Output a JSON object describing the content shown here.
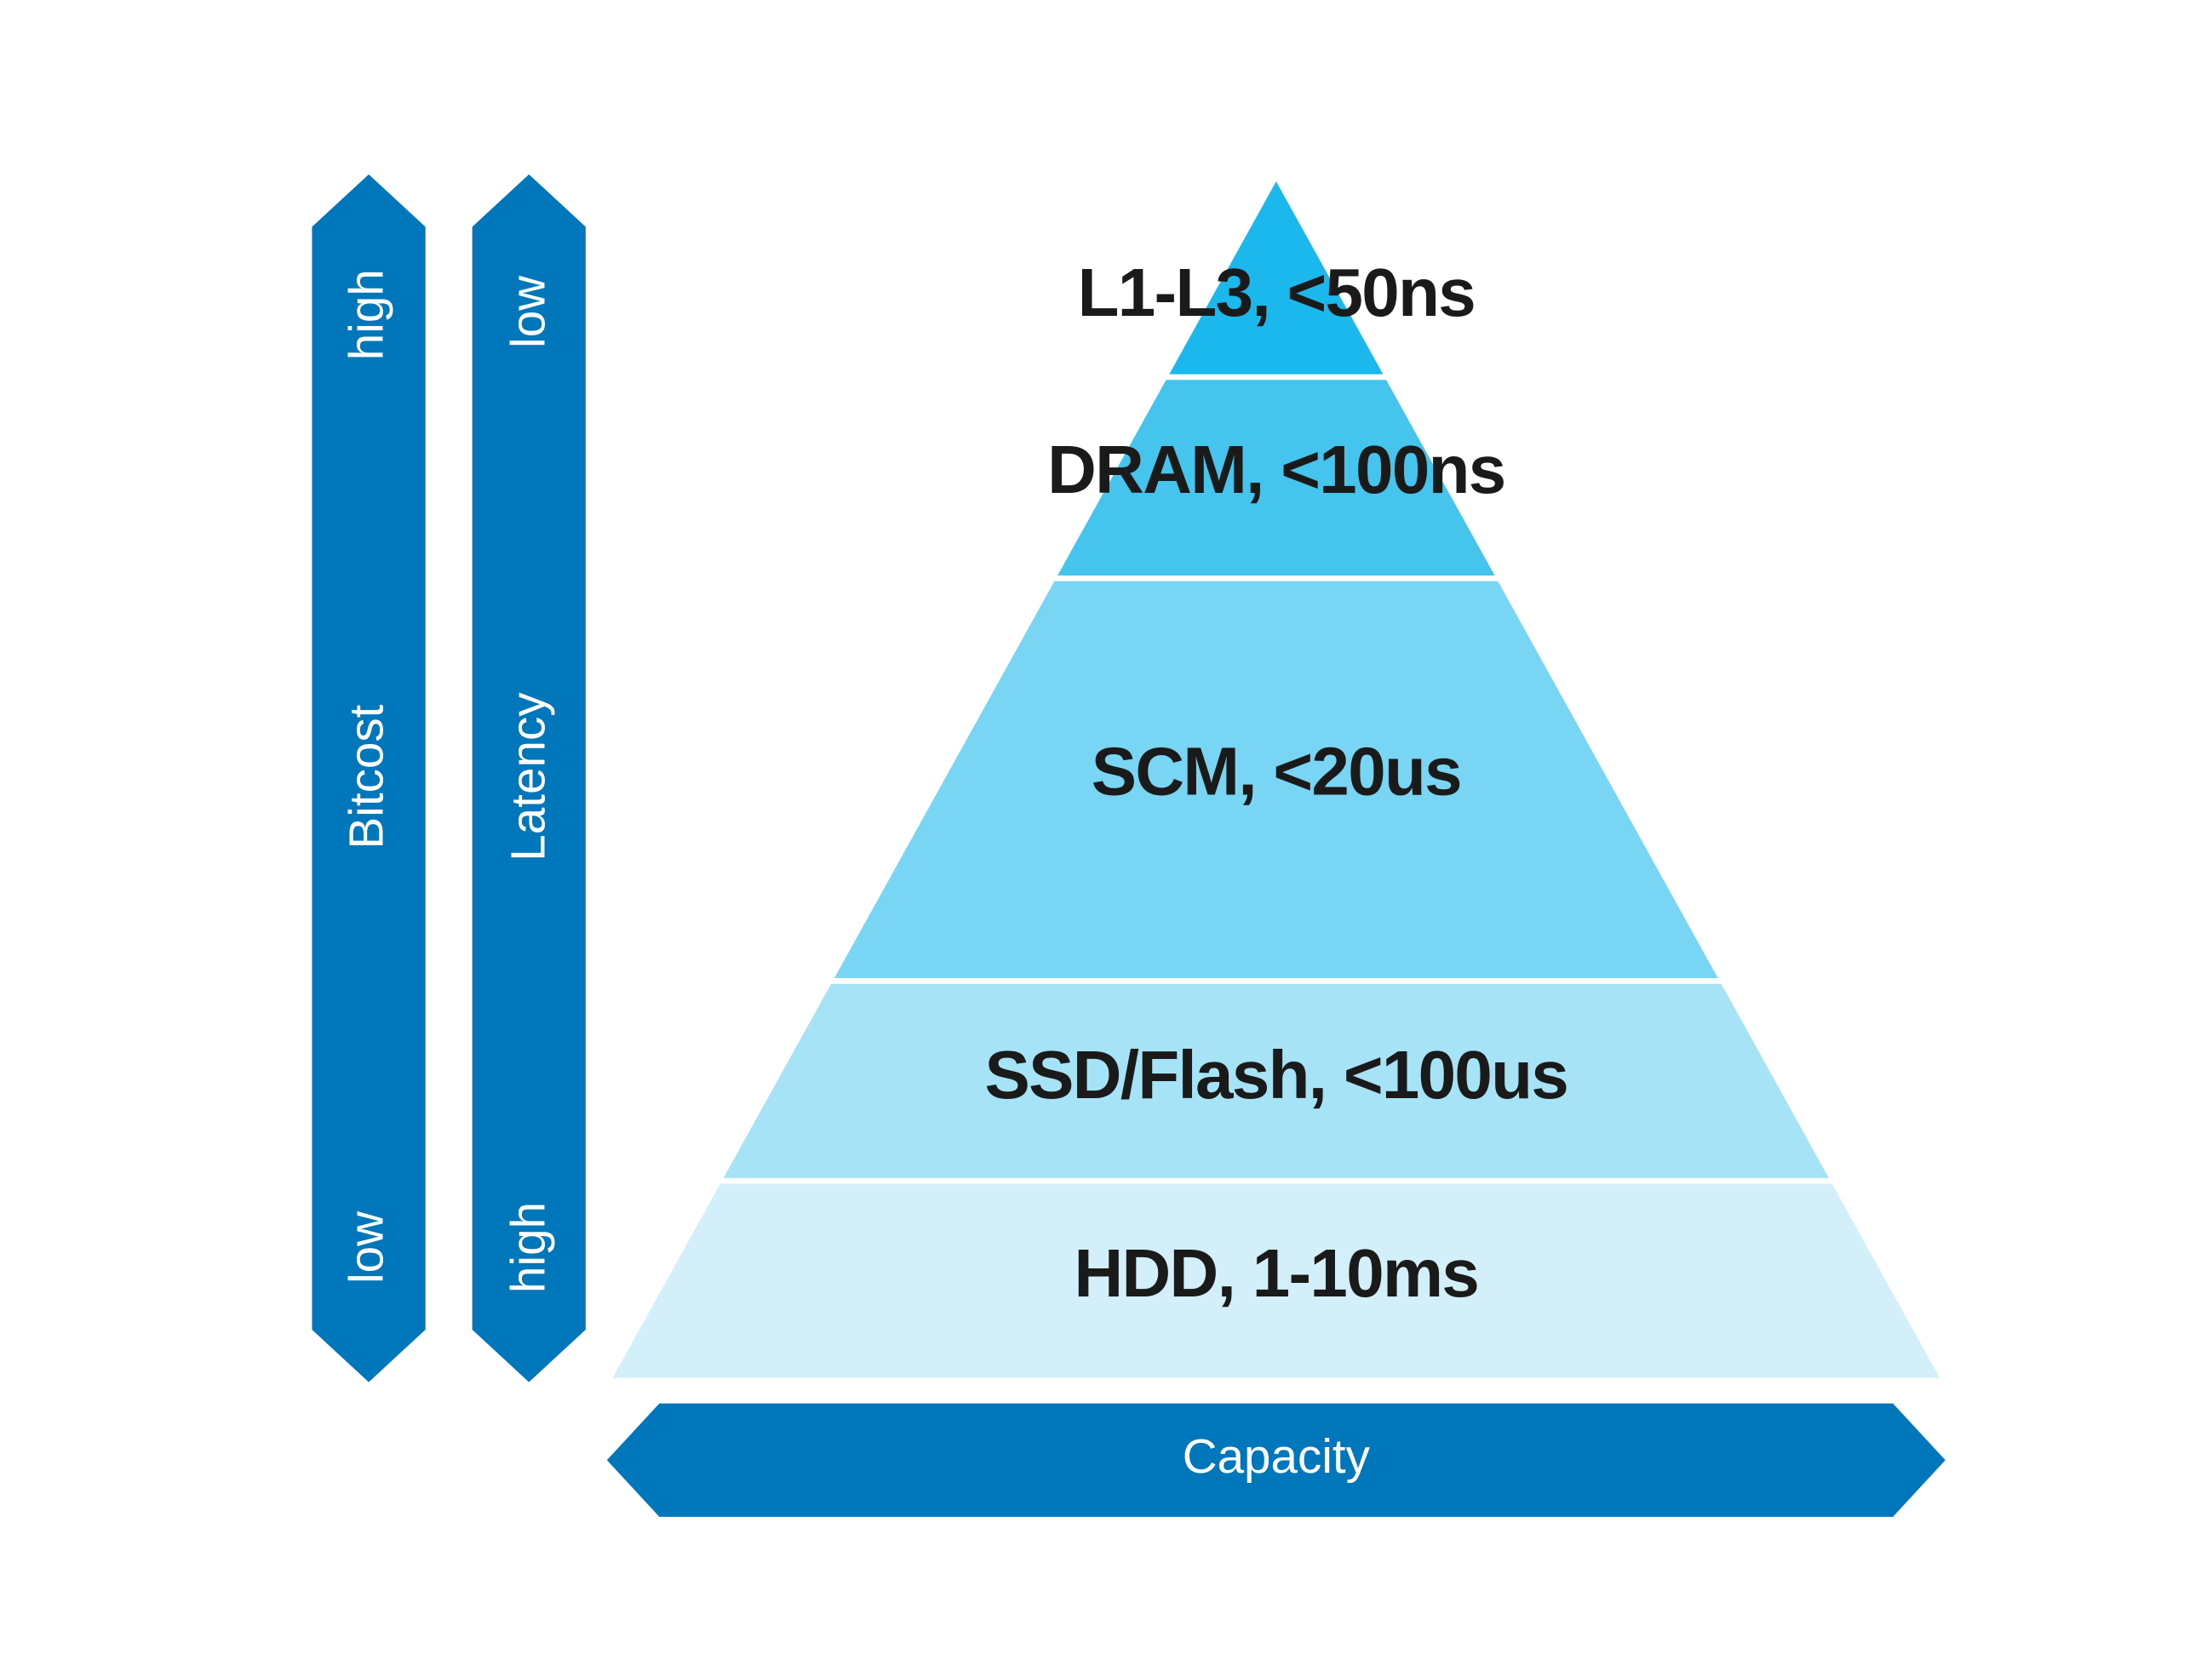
{
  "pyramid": {
    "layers": [
      "L1-L3, <50ns",
      "DRAM, <100ns",
      "SCM, <20us",
      "SSD/Flash, <100us",
      "HDD, 1-10ms"
    ]
  },
  "bitcost": {
    "label": "Bitcost",
    "top": "high",
    "bottom": "low"
  },
  "latency": {
    "label": "Latency",
    "top": "low",
    "bottom": "high"
  },
  "capacity": {
    "label": "Capacity"
  }
}
